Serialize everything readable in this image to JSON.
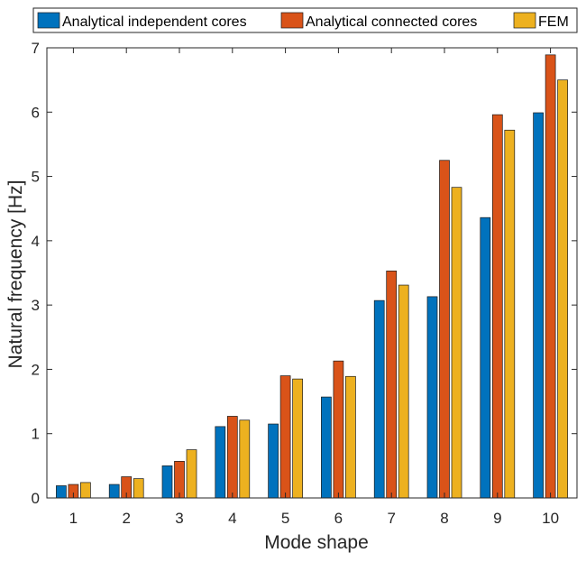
{
  "chart_data": {
    "type": "bar",
    "title": "",
    "xlabel": "Mode shape",
    "ylabel": "Natural frequency [Hz]",
    "categories": [
      "1",
      "2",
      "3",
      "4",
      "5",
      "6",
      "7",
      "8",
      "9",
      "10"
    ],
    "series": [
      {
        "name": "Analytical independent cores",
        "color": "#0072BD",
        "values": [
          0.19,
          0.21,
          0.5,
          1.11,
          1.15,
          1.57,
          3.07,
          3.13,
          4.36,
          5.99
        ]
      },
      {
        "name": "Analytical connected cores",
        "color": "#D95319",
        "values": [
          0.21,
          0.33,
          0.57,
          1.27,
          1.9,
          2.13,
          3.53,
          5.25,
          5.96,
          6.89
        ]
      },
      {
        "name": "FEM",
        "color": "#EDB120",
        "values": [
          0.24,
          0.3,
          0.75,
          1.21,
          1.85,
          1.89,
          3.31,
          4.83,
          5.72,
          6.5
        ]
      }
    ],
    "ylim": [
      0,
      7
    ],
    "yticks": [
      "0",
      "1",
      "2",
      "3",
      "4",
      "5",
      "6",
      "7"
    ],
    "grid": false,
    "legend": "top"
  }
}
